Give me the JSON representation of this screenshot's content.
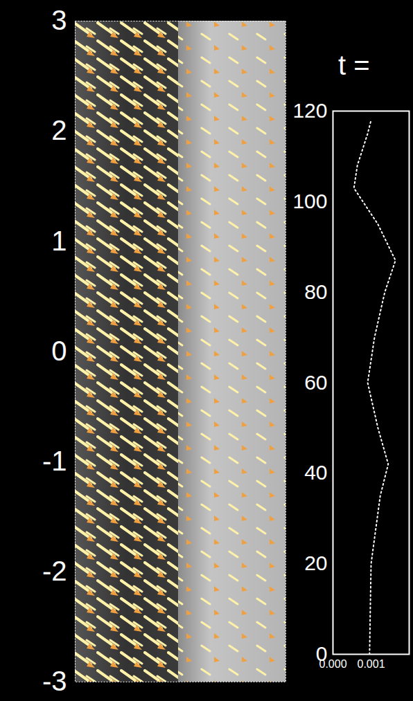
{
  "chart_data": [
    {
      "type": "image",
      "ylim": [
        -3,
        3
      ],
      "yticks": [
        -3,
        -2,
        -1,
        0,
        1,
        2,
        3
      ],
      "tick_labels": "y"
    },
    {
      "type": "line",
      "title": "t =",
      "x": [
        0.00096,
        0.001,
        0.00124,
        0.00145,
        0.00118,
        0.00091,
        0.00109,
        0.00136,
        0.00164,
        0.00118,
        0.00055,
        0.00064,
        0.00091,
        0.001
      ],
      "y": [
        0,
        20,
        35,
        42,
        50,
        60,
        70,
        80,
        87,
        95,
        103,
        108,
        115,
        118
      ],
      "xlim": [
        0,
        0.002
      ],
      "xticks": [
        {
          "value": 0,
          "label": "0.000"
        },
        {
          "value": 0.001,
          "label": "0.001"
        }
      ],
      "ylim": [
        0,
        120
      ],
      "yticks": [
        0,
        20,
        40,
        60,
        80,
        100,
        120
      ],
      "color": "#ffffff",
      "line_style": "dotted"
    }
  ]
}
